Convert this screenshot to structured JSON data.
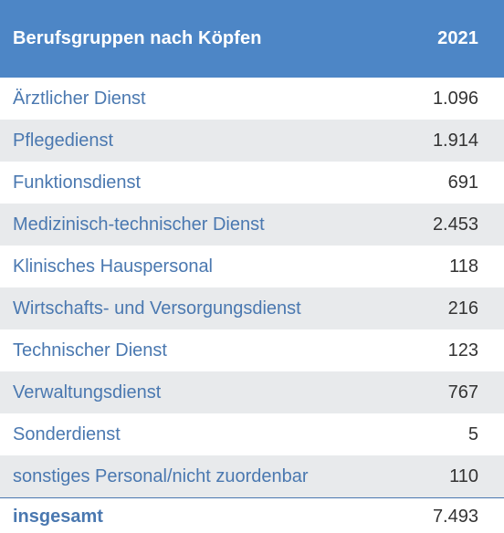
{
  "table": {
    "header": {
      "category": "Berufsgruppen nach Köpfen",
      "year": "2021"
    },
    "rows": [
      {
        "label": "Ärztlicher Dienst",
        "value": "1.096"
      },
      {
        "label": "Pflegedienst",
        "value": "1.914"
      },
      {
        "label": "Funktionsdienst",
        "value": "691"
      },
      {
        "label": "Medizinisch-technischer Dienst",
        "value": "2.453"
      },
      {
        "label": "Klinisches Hauspersonal",
        "value": "118"
      },
      {
        "label": "Wirtschafts- und Versorgungsdienst",
        "value": "216"
      },
      {
        "label": "Technischer Dienst",
        "value": "123"
      },
      {
        "label": "Verwaltungsdienst",
        "value": "767"
      },
      {
        "label": "Sonderdienst",
        "value": "5"
      },
      {
        "label": "sonstiges Personal/nicht zuordenbar",
        "value": "110"
      }
    ],
    "total": {
      "label": "insgesamt",
      "value": "7.493"
    }
  },
  "colors": {
    "header_background": "#4d86c6",
    "label_text": "#4a78b0",
    "alt_row_background": "#e8eaec"
  }
}
